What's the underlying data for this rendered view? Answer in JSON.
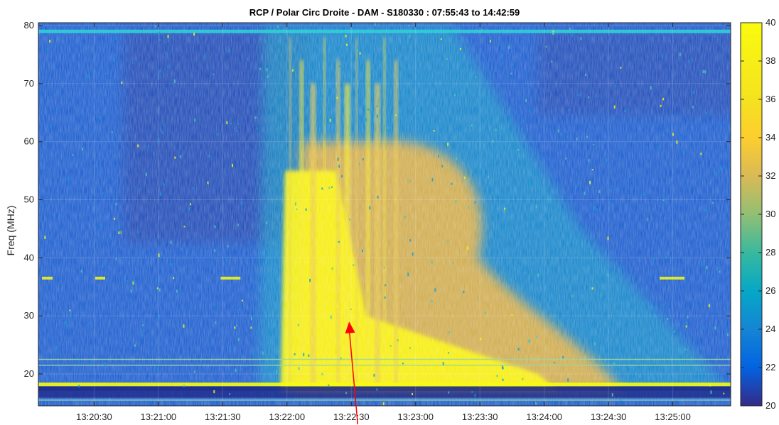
{
  "chart_data": {
    "type": "heatmap",
    "title": "RCP / Polar Circ Droite - DAM - S180330 : 07:55:43 to 14:42:59",
    "xlabel": "",
    "ylabel": "Freq (MHz)",
    "x_ticks": [
      "13:20:30",
      "13:21:00",
      "13:21:30",
      "13:22:00",
      "13:22:30",
      "13:23:00",
      "13:23:30",
      "13:24:00",
      "13:24:30",
      "13:25:00"
    ],
    "x_range": [
      "13:20:04",
      "13:25:27"
    ],
    "y_ticks": [
      20,
      30,
      40,
      50,
      60,
      70,
      80
    ],
    "ylim": [
      14.5,
      80.5
    ],
    "colorbar": {
      "ticks": [
        20,
        22,
        24,
        26,
        28,
        30,
        32,
        34,
        36,
        38,
        40
      ],
      "range": [
        20,
        40
      ],
      "colormap": "parula"
    },
    "grid": true,
    "annotations": [
      {
        "type": "arrow",
        "color": "#ff0000",
        "from": [
          "13:22:33",
          14.5
        ],
        "to": [
          "13:22:29",
          29
        ]
      }
    ],
    "features": {
      "background_level_db": 23,
      "burst_start": "13:21:57",
      "burst_peak_db": 40,
      "horizontal_interference_mhz": [
        15.5,
        17.5,
        18.2,
        21.5,
        22.5,
        36.5,
        79
      ]
    }
  }
}
